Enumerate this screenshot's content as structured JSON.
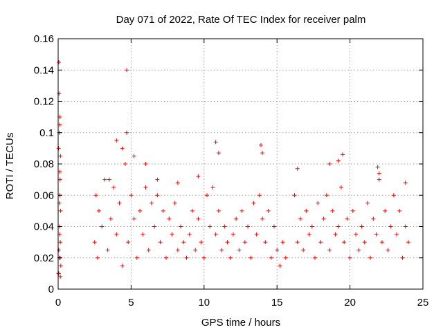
{
  "chart_data": {
    "type": "scatter",
    "title": "Day 071 of 2022, Rate Of TEC Index for receiver palm",
    "xlabel": "GPS time / hours",
    "ylabel": "ROTI / TECUs",
    "xlim": [
      0,
      25
    ],
    "ylim": [
      0,
      0.16
    ],
    "x_ticks": [
      "0",
      "5",
      "10",
      "15",
      "20",
      "25"
    ],
    "y_ticks": [
      "0",
      "0.02",
      "0.04",
      "0.06",
      "0.08",
      "0.1",
      "0.12",
      "0.14",
      "0.16"
    ],
    "grid": true,
    "marker": "+",
    "color": "#ff0000",
    "series": [
      {
        "x": [
          0.02,
          0.05,
          0.08,
          0.1,
          0.12,
          0.15,
          0.18,
          0.03,
          0.06,
          0.09,
          0.11,
          0.14,
          0.17,
          0.04,
          0.07,
          0.1,
          0.13,
          0.16,
          0.05,
          0.08,
          0.12,
          0.15,
          4.7,
          2.5,
          2.6,
          2.7,
          2.8,
          3.0,
          3.2,
          3.4,
          3.6,
          3.8,
          4.0,
          4.2,
          4.4,
          4.6,
          4.8,
          5.0,
          5.2,
          5.4,
          5.6,
          5.8,
          6.0,
          6.2,
          6.4,
          6.6,
          6.8,
          7.0,
          7.2,
          7.4,
          7.6,
          7.8,
          8.0,
          8.2,
          8.4,
          8.6,
          8.8,
          9.0,
          9.2,
          9.4,
          9.6,
          9.8,
          10.0,
          10.2,
          10.4,
          10.6,
          10.8,
          11.0,
          11.2,
          11.4,
          11.6,
          11.8,
          12.0,
          12.2,
          12.4,
          12.6,
          12.8,
          13.0,
          13.2,
          13.4,
          13.6,
          13.8,
          14.0,
          14.2,
          14.4,
          14.6,
          14.8,
          15.0,
          15.2,
          15.4,
          15.6,
          16.2,
          16.4,
          16.6,
          16.8,
          17.0,
          17.2,
          17.4,
          17.6,
          17.8,
          18.0,
          18.2,
          18.4,
          18.6,
          18.8,
          19.0,
          19.2,
          19.4,
          19.6,
          19.8,
          20.0,
          20.2,
          20.4,
          20.6,
          20.8,
          21.0,
          21.2,
          21.4,
          21.6,
          21.8,
          22.0,
          22.2,
          22.4,
          22.6,
          22.8,
          23.0,
          23.2,
          23.4,
          23.6,
          23.8,
          24.0,
          4.0,
          4.4,
          4.7,
          5.2,
          6.0,
          6.8,
          10.8,
          11.0,
          13.9,
          14.0,
          19.2,
          19.5,
          21.9,
          22.0,
          16.4,
          23.8,
          18.6,
          3.5,
          8.2,
          9.6
        ],
        "y": [
          0.01,
          0.145,
          0.02,
          0.105,
          0.06,
          0.03,
          0.015,
          0.09,
          0.125,
          0.04,
          0.075,
          0.02,
          0.05,
          0.01,
          0.1,
          0.035,
          0.07,
          0.085,
          0.025,
          0.055,
          0.11,
          0.008,
          0.14,
          0.03,
          0.06,
          0.02,
          0.05,
          0.04,
          0.07,
          0.025,
          0.045,
          0.065,
          0.035,
          0.055,
          0.015,
          0.08,
          0.03,
          0.06,
          0.045,
          0.02,
          0.05,
          0.035,
          0.065,
          0.025,
          0.055,
          0.04,
          0.06,
          0.03,
          0.05,
          0.02,
          0.045,
          0.035,
          0.055,
          0.025,
          0.04,
          0.03,
          0.02,
          0.035,
          0.05,
          0.025,
          0.045,
          0.03,
          0.02,
          0.06,
          0.04,
          0.065,
          0.035,
          0.05,
          0.025,
          0.04,
          0.03,
          0.02,
          0.035,
          0.045,
          0.025,
          0.05,
          0.03,
          0.04,
          0.02,
          0.055,
          0.035,
          0.06,
          0.045,
          0.03,
          0.05,
          0.02,
          0.04,
          0.025,
          0.015,
          0.03,
          0.02,
          0.06,
          0.03,
          0.045,
          0.025,
          0.05,
          0.035,
          0.04,
          0.02,
          0.055,
          0.03,
          0.045,
          0.06,
          0.025,
          0.05,
          0.035,
          0.04,
          0.065,
          0.03,
          0.045,
          0.02,
          0.05,
          0.035,
          0.025,
          0.04,
          0.03,
          0.055,
          0.02,
          0.045,
          0.035,
          0.07,
          0.03,
          0.05,
          0.025,
          0.04,
          0.06,
          0.035,
          0.05,
          0.02,
          0.04,
          0.03,
          0.095,
          0.09,
          0.1,
          0.085,
          0.08,
          0.07,
          0.094,
          0.087,
          0.092,
          0.087,
          0.082,
          0.086,
          0.078,
          0.074,
          0.077,
          0.068,
          0.08,
          0.07,
          0.068,
          0.072
        ]
      }
    ]
  }
}
